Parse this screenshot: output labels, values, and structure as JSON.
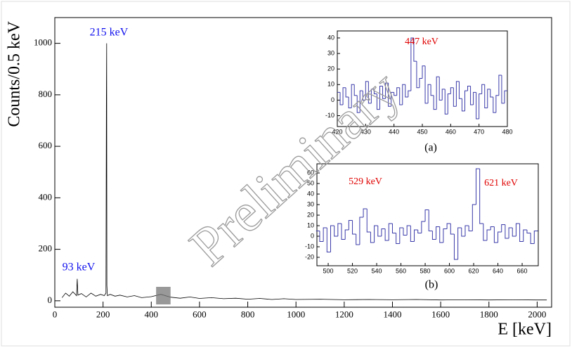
{
  "chart_data": [
    {
      "type": "line",
      "xlabel": "E [keV]",
      "ylabel": "Counts/0.5 keV",
      "color": "#000000",
      "x": [
        30,
        45,
        60,
        75,
        90,
        93,
        96,
        110,
        130,
        150,
        170,
        190,
        205,
        212,
        214,
        215,
        216,
        218,
        230,
        250,
        270,
        300,
        330,
        360,
        400,
        440,
        480,
        520,
        560,
        600,
        650,
        700,
        750,
        800,
        850,
        900,
        950,
        1000,
        1100,
        1200,
        1300,
        1400,
        1500,
        1600,
        1700,
        1800,
        1900,
        2000,
        2040
      ],
      "values": [
        12,
        30,
        18,
        35,
        20,
        85,
        22,
        28,
        15,
        30,
        18,
        25,
        20,
        30,
        780,
        1000,
        60,
        20,
        25,
        18,
        22,
        15,
        20,
        12,
        16,
        25,
        14,
        10,
        15,
        9,
        12,
        8,
        10,
        6,
        9,
        5,
        8,
        5,
        6,
        4,
        5,
        4,
        5,
        3,
        4,
        3,
        4,
        3,
        3
      ],
      "xlim": [
        0,
        2060
      ],
      "ylim": [
        -25,
        1100
      ],
      "xticks": [
        0,
        200,
        400,
        600,
        800,
        1000,
        1200,
        1400,
        1600,
        1800,
        2000
      ],
      "yticks": [
        0,
        200,
        400,
        600,
        800,
        1000
      ],
      "annotations": [
        {
          "text": "215 keV",
          "color": "#1010ee"
        },
        {
          "text": "93 keV",
          "color": "#1010ee"
        }
      ]
    },
    {
      "type": "histogram",
      "color": "#3a3aaa",
      "caption": "(a)",
      "bins": [
        420,
        421,
        422,
        423,
        424,
        425,
        426,
        427,
        428,
        429,
        430,
        431,
        432,
        433,
        434,
        435,
        436,
        437,
        438,
        439,
        440,
        441,
        442,
        443,
        444,
        445,
        446,
        447,
        448,
        449,
        450,
        451,
        452,
        453,
        454,
        455,
        456,
        457,
        458,
        459,
        460,
        461,
        462,
        463,
        464,
        465,
        466,
        467,
        468,
        469,
        470,
        471,
        472,
        473,
        474,
        475,
        476,
        477,
        478,
        479,
        480
      ],
      "values": [
        5,
        -3,
        8,
        2,
        -5,
        10,
        3,
        -8,
        6,
        0,
        12,
        -2,
        7,
        4,
        -6,
        9,
        1,
        11,
        -4,
        5,
        3,
        8,
        -3,
        10,
        2,
        6,
        40,
        25,
        8,
        14,
        22,
        -2,
        10,
        3,
        -6,
        15,
        0,
        7,
        -9,
        4,
        8,
        -4,
        12,
        1,
        -7,
        6,
        9,
        -3,
        5,
        -12,
        4,
        10,
        -5,
        7,
        2,
        -8,
        3,
        16,
        -2,
        6
      ],
      "xlim": [
        420,
        480
      ],
      "ylim": [
        -17,
        44.5
      ],
      "xticks": [
        420,
        430,
        440,
        450,
        460,
        470,
        480
      ],
      "yticks": [
        -10,
        0,
        10,
        20,
        30,
        40
      ],
      "annotations": [
        {
          "text": "447 keV",
          "color": "#e00000"
        }
      ]
    },
    {
      "type": "histogram",
      "color": "#3a3aaa",
      "caption": "(b)",
      "bins": [
        490,
        493,
        496,
        499,
        502,
        505,
        508,
        511,
        514,
        517,
        520,
        523,
        526,
        529,
        532,
        535,
        538,
        541,
        544,
        547,
        550,
        553,
        556,
        559,
        562,
        565,
        568,
        571,
        574,
        577,
        580,
        583,
        586,
        589,
        592,
        595,
        598,
        601,
        604,
        607,
        610,
        613,
        616,
        619,
        622,
        625,
        628,
        631,
        634,
        637,
        640,
        643,
        646,
        649,
        652,
        655,
        658,
        661,
        664,
        667,
        670,
        673
      ],
      "values": [
        5,
        -5,
        8,
        -15,
        10,
        0,
        12,
        -3,
        6,
        15,
        2,
        -8,
        18,
        26,
        4,
        -6,
        10,
        0,
        7,
        -4,
        12,
        3,
        -7,
        8,
        1,
        10,
        -5,
        6,
        3,
        14,
        25,
        5,
        -3,
        9,
        -6,
        7,
        12,
        2,
        -22,
        8,
        0,
        10,
        5,
        30,
        64,
        12,
        -4,
        6,
        9,
        -6,
        4,
        11,
        -2,
        8,
        0,
        12,
        -5,
        6,
        3,
        -7,
        5
      ],
      "xlim": [
        490.7,
        673.3
      ],
      "ylim": [
        -28,
        68.7
      ],
      "xticks": [
        500,
        520,
        540,
        560,
        580,
        600,
        620,
        640,
        660
      ],
      "yticks": [
        -20,
        -10,
        0,
        10,
        20,
        30,
        40,
        50,
        60
      ],
      "annotations": [
        {
          "text": "529 keV",
          "color": "#e00000"
        },
        {
          "text": "621 keV",
          "color": "#e00000"
        }
      ]
    }
  ],
  "watermark": "Preliminary"
}
